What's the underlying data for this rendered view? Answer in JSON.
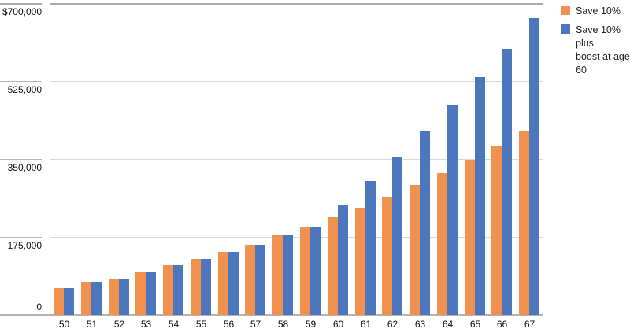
{
  "legend": {
    "items": [
      {
        "series_key": "save-10pct",
        "lines": [
          "Save 10%"
        ]
      },
      {
        "series_key": "save-10pct-boost",
        "lines": [
          "Save 10% plus",
          "boost at age 60"
        ]
      }
    ]
  },
  "chart_data": {
    "type": "bar",
    "title": "",
    "xlabel": "",
    "ylabel": "",
    "categories": [
      "50",
      "51",
      "52",
      "53",
      "54",
      "55",
      "56",
      "57",
      "58",
      "59",
      "60",
      "61",
      "62",
      "63",
      "64",
      "65",
      "66",
      "67"
    ],
    "series": [
      {
        "key": "save-10pct",
        "name": "Save 10%",
        "color": "#f0914e",
        "values": [
          60000,
          72000,
          82000,
          96000,
          111000,
          125000,
          141000,
          158000,
          178000,
          198000,
          219000,
          241000,
          266000,
          291000,
          319000,
          349000,
          380000,
          414000
        ]
      },
      {
        "key": "save-10pct-boost",
        "name": "Save 10% plus boost at age 60",
        "color": "#4c76bd",
        "values": [
          60000,
          72000,
          82000,
          96000,
          111000,
          125000,
          141000,
          158000,
          178000,
          198000,
          247000,
          300000,
          355000,
          412000,
          470000,
          533000,
          598000,
          666000
        ]
      }
    ],
    "y_ticks": [
      {
        "label": "$700,000",
        "value": 700000
      },
      {
        "label": "525,000",
        "value": 525000
      },
      {
        "label": "350,000",
        "value": 350000
      },
      {
        "label": "175,000",
        "value": 175000
      },
      {
        "label": "0",
        "value": 0
      }
    ],
    "ylim": [
      0,
      700000
    ],
    "grid": true,
    "legend_position": "top-right"
  }
}
